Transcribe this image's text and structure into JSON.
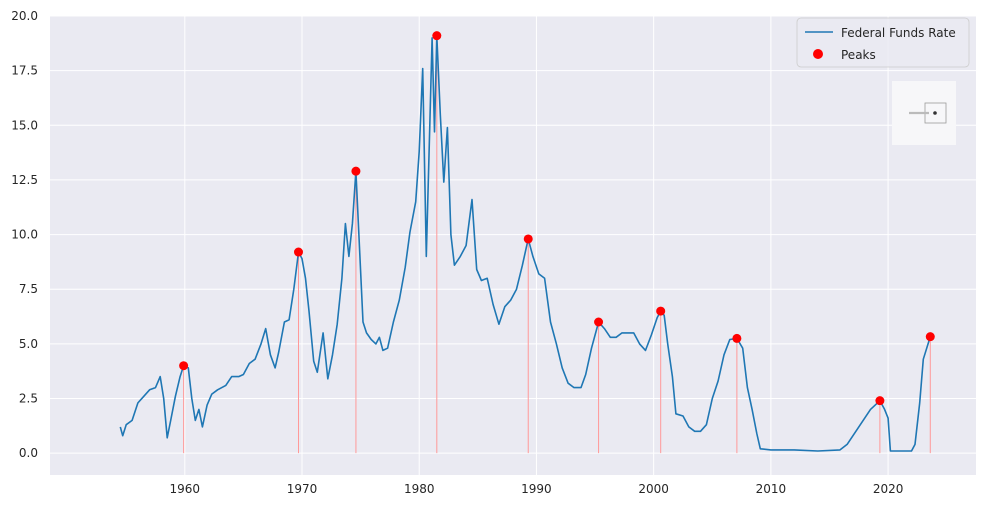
{
  "chart_data": {
    "type": "line",
    "grid": true,
    "legend_placement": "top-right",
    "xlim": [
      1948.5,
      2027.5
    ],
    "ylim": [
      -1.0,
      20.0
    ],
    "x_ticks": [
      1960,
      1970,
      1980,
      1990,
      2000,
      2010,
      2020
    ],
    "y_ticks": [
      0.0,
      2.5,
      5.0,
      7.5,
      10.0,
      12.5,
      15.0,
      17.5,
      20.0
    ],
    "y_tick_labels": [
      "0.0",
      "2.5",
      "5.0",
      "7.5",
      "10.0",
      "12.5",
      "15.0",
      "17.5",
      "20.0"
    ],
    "colors": {
      "line": "#1f77b4",
      "peak": "#ff0000",
      "stem": "#ff9999",
      "background": "#eaeaf2",
      "grid": "#ffffff"
    },
    "series": [
      {
        "name": "Federal Funds Rate",
        "points": [
          [
            1954.5,
            1.2
          ],
          [
            1954.7,
            0.8
          ],
          [
            1955.0,
            1.3
          ],
          [
            1955.5,
            1.5
          ],
          [
            1956.0,
            2.3
          ],
          [
            1956.5,
            2.6
          ],
          [
            1957.0,
            2.9
          ],
          [
            1957.5,
            3.0
          ],
          [
            1957.9,
            3.5
          ],
          [
            1958.2,
            2.5
          ],
          [
            1958.5,
            0.7
          ],
          [
            1958.8,
            1.5
          ],
          [
            1959.2,
            2.6
          ],
          [
            1959.6,
            3.5
          ],
          [
            1959.9,
            4.0
          ],
          [
            1960.3,
            3.9
          ],
          [
            1960.6,
            2.5
          ],
          [
            1960.9,
            1.5
          ],
          [
            1961.2,
            2.0
          ],
          [
            1961.5,
            1.2
          ],
          [
            1961.9,
            2.2
          ],
          [
            1962.3,
            2.7
          ],
          [
            1962.8,
            2.9
          ],
          [
            1963.5,
            3.1
          ],
          [
            1964.0,
            3.5
          ],
          [
            1964.6,
            3.5
          ],
          [
            1965.0,
            3.6
          ],
          [
            1965.5,
            4.1
          ],
          [
            1966.0,
            4.3
          ],
          [
            1966.5,
            5.0
          ],
          [
            1966.9,
            5.7
          ],
          [
            1967.3,
            4.5
          ],
          [
            1967.7,
            3.9
          ],
          [
            1968.0,
            4.6
          ],
          [
            1968.5,
            6.0
          ],
          [
            1968.9,
            6.1
          ],
          [
            1969.3,
            7.5
          ],
          [
            1969.7,
            9.2
          ],
          [
            1970.0,
            8.9
          ],
          [
            1970.3,
            8.0
          ],
          [
            1970.6,
            6.5
          ],
          [
            1971.0,
            4.2
          ],
          [
            1971.3,
            3.7
          ],
          [
            1971.8,
            5.5
          ],
          [
            1972.2,
            3.4
          ],
          [
            1972.6,
            4.5
          ],
          [
            1973.0,
            5.9
          ],
          [
            1973.4,
            8.0
          ],
          [
            1973.7,
            10.5
          ],
          [
            1974.0,
            9.0
          ],
          [
            1974.3,
            10.5
          ],
          [
            1974.6,
            12.9
          ],
          [
            1974.9,
            9.5
          ],
          [
            1975.2,
            6.0
          ],
          [
            1975.5,
            5.5
          ],
          [
            1975.9,
            5.2
          ],
          [
            1976.3,
            5.0
          ],
          [
            1976.6,
            5.3
          ],
          [
            1976.9,
            4.7
          ],
          [
            1977.3,
            4.8
          ],
          [
            1977.8,
            6.0
          ],
          [
            1978.3,
            7.0
          ],
          [
            1978.8,
            8.5
          ],
          [
            1979.2,
            10.1
          ],
          [
            1979.7,
            11.5
          ],
          [
            1980.0,
            13.8
          ],
          [
            1980.3,
            17.6
          ],
          [
            1980.6,
            9.0
          ],
          [
            1980.9,
            15.0
          ],
          [
            1981.1,
            19.0
          ],
          [
            1981.3,
            14.7
          ],
          [
            1981.5,
            19.1
          ],
          [
            1981.8,
            15.5
          ],
          [
            1982.1,
            12.4
          ],
          [
            1982.4,
            14.9
          ],
          [
            1982.7,
            10.0
          ],
          [
            1983.0,
            8.6
          ],
          [
            1983.5,
            9.0
          ],
          [
            1984.0,
            9.5
          ],
          [
            1984.5,
            11.6
          ],
          [
            1984.9,
            8.4
          ],
          [
            1985.3,
            7.9
          ],
          [
            1985.8,
            8.0
          ],
          [
            1986.3,
            6.8
          ],
          [
            1986.8,
            5.9
          ],
          [
            1987.3,
            6.7
          ],
          [
            1987.8,
            7.0
          ],
          [
            1988.3,
            7.5
          ],
          [
            1988.8,
            8.6
          ],
          [
            1989.3,
            9.8
          ],
          [
            1989.7,
            9.0
          ],
          [
            1990.2,
            8.2
          ],
          [
            1990.7,
            8.0
          ],
          [
            1991.2,
            6.0
          ],
          [
            1991.7,
            5.0
          ],
          [
            1992.2,
            3.9
          ],
          [
            1992.7,
            3.2
          ],
          [
            1993.2,
            3.0
          ],
          [
            1993.8,
            3.0
          ],
          [
            1994.2,
            3.6
          ],
          [
            1994.7,
            4.8
          ],
          [
            1995.3,
            6.0
          ],
          [
            1995.8,
            5.7
          ],
          [
            1996.3,
            5.3
          ],
          [
            1996.8,
            5.3
          ],
          [
            1997.3,
            5.5
          ],
          [
            1997.8,
            5.5
          ],
          [
            1998.3,
            5.5
          ],
          [
            1998.8,
            5.0
          ],
          [
            1999.3,
            4.7
          ],
          [
            1999.8,
            5.4
          ],
          [
            2000.3,
            6.2
          ],
          [
            2000.6,
            6.5
          ],
          [
            2000.9,
            6.3
          ],
          [
            2001.2,
            5.0
          ],
          [
            2001.6,
            3.5
          ],
          [
            2001.9,
            1.8
          ],
          [
            2002.5,
            1.7
          ],
          [
            2003.0,
            1.2
          ],
          [
            2003.5,
            1.0
          ],
          [
            2004.0,
            1.0
          ],
          [
            2004.5,
            1.3
          ],
          [
            2005.0,
            2.5
          ],
          [
            2005.5,
            3.3
          ],
          [
            2006.0,
            4.5
          ],
          [
            2006.5,
            5.2
          ],
          [
            2007.1,
            5.25
          ],
          [
            2007.6,
            4.8
          ],
          [
            2008.0,
            3.0
          ],
          [
            2008.4,
            2.0
          ],
          [
            2008.8,
            0.9
          ],
          [
            2009.1,
            0.2
          ],
          [
            2010.0,
            0.15
          ],
          [
            2012.0,
            0.15
          ],
          [
            2014.0,
            0.1
          ],
          [
            2015.9,
            0.15
          ],
          [
            2016.5,
            0.4
          ],
          [
            2017.5,
            1.2
          ],
          [
            2018.5,
            2.0
          ],
          [
            2019.3,
            2.4
          ],
          [
            2019.7,
            2.0
          ],
          [
            2020.0,
            1.6
          ],
          [
            2020.2,
            0.1
          ],
          [
            2021.0,
            0.1
          ],
          [
            2022.0,
            0.1
          ],
          [
            2022.3,
            0.4
          ],
          [
            2022.7,
            2.3
          ],
          [
            2023.0,
            4.3
          ],
          [
            2023.6,
            5.33
          ]
        ]
      },
      {
        "name": "Peaks",
        "points": [
          [
            1959.9,
            4.0
          ],
          [
            1969.7,
            9.2
          ],
          [
            1974.6,
            12.9
          ],
          [
            1981.5,
            19.1
          ],
          [
            1989.3,
            9.8
          ],
          [
            1995.3,
            6.0
          ],
          [
            2000.6,
            6.5
          ],
          [
            2007.1,
            5.25
          ],
          [
            2019.3,
            2.4
          ],
          [
            2023.6,
            5.33
          ]
        ]
      }
    ]
  }
}
